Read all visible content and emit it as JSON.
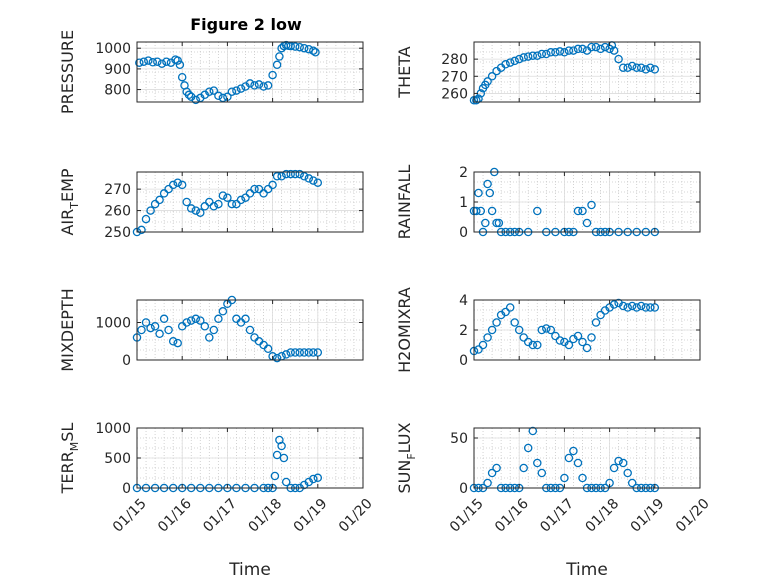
{
  "title": "Figure 2 low",
  "chart_data": [
    {
      "type": "scatter",
      "panel": "pressure",
      "title": "Figure 2 low",
      "ylabel": "PRESSURE",
      "ylim": [
        740,
        1030
      ],
      "yticks": [
        800,
        900,
        1000
      ],
      "xlim": [
        0,
        5
      ],
      "xticklabels": [],
      "grid": true,
      "marker_color": "#0072BD",
      "x": [
        0.05,
        0.15,
        0.25,
        0.35,
        0.45,
        0.55,
        0.65,
        0.75,
        0.85,
        0.9,
        0.95,
        1.0,
        1.05,
        1.1,
        1.15,
        1.2,
        1.3,
        1.4,
        1.5,
        1.6,
        1.7,
        1.8,
        1.9,
        2.0,
        2.1,
        2.2,
        2.3,
        2.4,
        2.5,
        2.6,
        2.7,
        2.8,
        2.9,
        3.0,
        3.1,
        3.15,
        3.2,
        3.25,
        3.3,
        3.35,
        3.4,
        3.5,
        3.6,
        3.7,
        3.8,
        3.9,
        3.95
      ],
      "y": [
        930,
        935,
        940,
        932,
        935,
        925,
        935,
        930,
        945,
        940,
        920,
        860,
        820,
        790,
        775,
        765,
        750,
        760,
        775,
        790,
        795,
        770,
        760,
        765,
        790,
        795,
        805,
        815,
        830,
        820,
        825,
        815,
        820,
        870,
        920,
        960,
        1000,
        1010,
        1015,
        1012,
        1010,
        1008,
        1005,
        1000,
        995,
        988,
        980
      ]
    },
    {
      "type": "scatter",
      "panel": "theta",
      "ylabel": "THETA",
      "ylim": [
        255,
        290
      ],
      "yticks": [
        260,
        270,
        280
      ],
      "xlim": [
        0,
        5
      ],
      "xticklabels": [],
      "grid": true,
      "marker_color": "#0072BD",
      "x": [
        0.0,
        0.05,
        0.1,
        0.15,
        0.2,
        0.25,
        0.3,
        0.4,
        0.5,
        0.6,
        0.7,
        0.8,
        0.9,
        1.0,
        1.1,
        1.2,
        1.3,
        1.4,
        1.5,
        1.6,
        1.7,
        1.8,
        1.9,
        2.0,
        2.1,
        2.2,
        2.3,
        2.4,
        2.5,
        2.6,
        2.7,
        2.8,
        2.9,
        3.0,
        3.05,
        3.1,
        3.2,
        3.3,
        3.4,
        3.5,
        3.6,
        3.7,
        3.8,
        3.9,
        4.0
      ],
      "y": [
        256,
        256,
        257,
        260,
        263,
        265,
        267,
        270,
        273,
        275,
        277,
        278,
        279,
        280,
        281,
        281.5,
        282,
        282,
        283,
        283,
        284,
        284,
        284.5,
        284,
        285,
        285,
        286,
        286,
        285,
        287,
        287,
        286,
        287,
        286,
        288,
        285,
        280,
        275,
        275,
        276,
        275,
        275,
        274,
        275,
        274
      ]
    },
    {
      "type": "scatter",
      "panel": "air_temp",
      "ylabel": "AIR_TEMP",
      "ylim": [
        250,
        278
      ],
      "yticks": [
        250,
        260,
        270
      ],
      "xlim": [
        0,
        5
      ],
      "xticklabels": [],
      "grid": true,
      "marker_color": "#0072BD",
      "x": [
        0.0,
        0.1,
        0.2,
        0.3,
        0.4,
        0.5,
        0.6,
        0.7,
        0.8,
        0.9,
        1.0,
        1.1,
        1.2,
        1.3,
        1.4,
        1.5,
        1.6,
        1.7,
        1.8,
        1.9,
        2.0,
        2.1,
        2.2,
        2.3,
        2.4,
        2.5,
        2.6,
        2.7,
        2.8,
        2.9,
        3.0,
        3.1,
        3.2,
        3.3,
        3.4,
        3.5,
        3.6,
        3.7,
        3.8,
        3.9,
        4.0
      ],
      "y": [
        250,
        251,
        256,
        260,
        263,
        265,
        268,
        270,
        272,
        273,
        272,
        264,
        261,
        260,
        259,
        262,
        264,
        262,
        263,
        267,
        266,
        263,
        263,
        265,
        266,
        268,
        270,
        270,
        268,
        270,
        272,
        276,
        276,
        277,
        277,
        277,
        277,
        276,
        275,
        274,
        273
      ]
    },
    {
      "type": "scatter",
      "panel": "rainfall",
      "ylabel": "RAINFALL",
      "ylim": [
        0,
        2
      ],
      "yticks": [
        0,
        1,
        2
      ],
      "xlim": [
        0,
        5
      ],
      "xticklabels": [],
      "grid": true,
      "marker_color": "#0072BD",
      "x": [
        0.0,
        0.05,
        0.1,
        0.15,
        0.2,
        0.25,
        0.3,
        0.35,
        0.4,
        0.45,
        0.5,
        0.55,
        0.6,
        0.7,
        0.8,
        0.9,
        1.0,
        1.2,
        1.4,
        1.6,
        1.8,
        2.0,
        2.1,
        2.2,
        2.3,
        2.4,
        2.5,
        2.6,
        2.7,
        2.8,
        2.9,
        3.0,
        3.2,
        3.4,
        3.6,
        3.8,
        4.0
      ],
      "y": [
        0.7,
        0.7,
        1.3,
        0.7,
        0,
        0.3,
        1.6,
        1.3,
        0.7,
        2.0,
        0.3,
        0.3,
        0,
        0,
        0,
        0,
        0,
        0,
        0.7,
        0,
        0,
        0,
        0,
        0,
        0.7,
        0.7,
        0.3,
        0.9,
        0,
        0,
        0,
        0,
        0,
        0,
        0,
        0,
        0
      ]
    },
    {
      "type": "scatter",
      "panel": "mixdepth",
      "ylabel": "MIXDEPTH",
      "ylim": [
        0,
        1600
      ],
      "yticks": [
        0,
        1000
      ],
      "xlim": [
        0,
        5
      ],
      "xticklabels": [],
      "grid": true,
      "marker_color": "#0072BD",
      "x": [
        0.0,
        0.1,
        0.2,
        0.3,
        0.4,
        0.5,
        0.6,
        0.7,
        0.8,
        0.9,
        1.0,
        1.1,
        1.2,
        1.3,
        1.4,
        1.5,
        1.6,
        1.7,
        1.8,
        1.9,
        2.0,
        2.1,
        2.2,
        2.3,
        2.4,
        2.5,
        2.6,
        2.7,
        2.8,
        2.9,
        3.0,
        3.1,
        3.2,
        3.3,
        3.4,
        3.5,
        3.6,
        3.7,
        3.8,
        3.9,
        4.0
      ],
      "y": [
        600,
        800,
        1000,
        850,
        900,
        700,
        1100,
        800,
        500,
        450,
        900,
        1000,
        1050,
        1100,
        1050,
        900,
        600,
        800,
        1100,
        1300,
        1500,
        1600,
        1100,
        1000,
        1100,
        800,
        600,
        500,
        400,
        300,
        100,
        50,
        100,
        150,
        200,
        200,
        200,
        200,
        200,
        200,
        200
      ]
    },
    {
      "type": "scatter",
      "panel": "h2omixra",
      "ylabel": "H2OMIXRA",
      "ylim": [
        0,
        4
      ],
      "yticks": [
        0,
        2,
        4
      ],
      "xlim": [
        0,
        5
      ],
      "xticklabels": [],
      "grid": true,
      "marker_color": "#0072BD",
      "x": [
        0.0,
        0.1,
        0.2,
        0.3,
        0.4,
        0.5,
        0.6,
        0.7,
        0.8,
        0.9,
        1.0,
        1.1,
        1.2,
        1.3,
        1.4,
        1.5,
        1.6,
        1.7,
        1.8,
        1.9,
        2.0,
        2.1,
        2.2,
        2.3,
        2.4,
        2.5,
        2.6,
        2.7,
        2.8,
        2.9,
        3.0,
        3.1,
        3.2,
        3.3,
        3.4,
        3.5,
        3.6,
        3.7,
        3.8,
        3.9,
        4.0
      ],
      "y": [
        0.6,
        0.7,
        1.0,
        1.5,
        2.0,
        2.5,
        3.0,
        3.2,
        3.5,
        2.5,
        2.0,
        1.5,
        1.2,
        1.0,
        1.0,
        2.0,
        2.1,
        2.0,
        1.6,
        1.3,
        1.2,
        1.0,
        1.4,
        1.6,
        1.2,
        0.8,
        1.5,
        2.5,
        3.0,
        3.3,
        3.5,
        3.7,
        3.8,
        3.6,
        3.5,
        3.6,
        3.5,
        3.6,
        3.5,
        3.5,
        3.5
      ]
    },
    {
      "type": "scatter",
      "panel": "terr_msl",
      "ylabel": "TERR_MSL",
      "ylim": [
        0,
        1000
      ],
      "yticks": [
        0,
        500,
        1000
      ],
      "xlim": [
        0,
        5
      ],
      "xticks": [
        0,
        1,
        2,
        3,
        4,
        5
      ],
      "xticklabels": [
        "01/15",
        "01/16",
        "01/17",
        "01/18",
        "01/19",
        "01/20"
      ],
      "xlabel": "Time",
      "grid": true,
      "marker_color": "#0072BD",
      "x": [
        0.0,
        0.2,
        0.4,
        0.6,
        0.8,
        1.0,
        1.2,
        1.4,
        1.6,
        1.8,
        2.0,
        2.2,
        2.4,
        2.6,
        2.8,
        2.9,
        3.0,
        3.05,
        3.1,
        3.15,
        3.2,
        3.25,
        3.3,
        3.4,
        3.5,
        3.6,
        3.7,
        3.8,
        3.9,
        4.0
      ],
      "y": [
        0,
        0,
        0,
        0,
        0,
        0,
        0,
        0,
        0,
        0,
        0,
        0,
        0,
        0,
        0,
        0,
        0,
        200,
        550,
        800,
        700,
        500,
        100,
        0,
        0,
        0,
        50,
        100,
        150,
        170
      ]
    },
    {
      "type": "scatter",
      "panel": "sun_flux",
      "ylabel": "SUN_FLUX",
      "ylim": [
        0,
        60
      ],
      "yticks": [
        0,
        50
      ],
      "xlim": [
        0,
        5
      ],
      "xticks": [
        0,
        1,
        2,
        3,
        4,
        5
      ],
      "xticklabels": [
        "01/15",
        "01/16",
        "01/17",
        "01/18",
        "01/19",
        "01/20"
      ],
      "xlabel": "Time",
      "grid": true,
      "marker_color": "#0072BD",
      "x": [
        0.0,
        0.1,
        0.2,
        0.3,
        0.4,
        0.5,
        0.6,
        0.7,
        0.8,
        0.9,
        1.0,
        1.1,
        1.2,
        1.3,
        1.4,
        1.5,
        1.6,
        1.7,
        1.8,
        1.9,
        2.0,
        2.1,
        2.2,
        2.3,
        2.4,
        2.5,
        2.6,
        2.7,
        2.8,
        2.9,
        3.0,
        3.1,
        3.2,
        3.3,
        3.4,
        3.5,
        3.6,
        3.7,
        3.8,
        3.9,
        4.0
      ],
      "y": [
        0,
        0,
        0,
        5,
        15,
        20,
        0,
        0,
        0,
        0,
        0,
        20,
        40,
        57,
        25,
        15,
        0,
        0,
        0,
        0,
        10,
        30,
        37,
        25,
        10,
        0,
        0,
        0,
        0,
        0,
        5,
        20,
        27,
        25,
        15,
        5,
        0,
        0,
        0,
        0,
        0
      ]
    }
  ]
}
